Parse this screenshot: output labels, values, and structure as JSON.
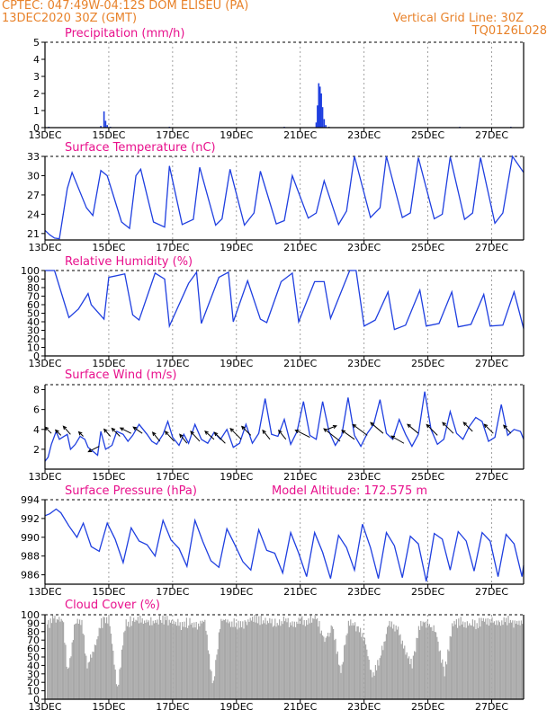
{
  "header": {
    "left_line1": "CPTEC:   047:49W-04:12S   DOM ELISEU (PA)",
    "left_line2": "13DEC2020 30Z (GMT)",
    "right_line1": "Vertical Grid Line: 30Z",
    "right_line2": "TQ0126L028"
  },
  "colors": {
    "header": "#e8822a",
    "title": "#e8108c",
    "series": "#1f3fe0",
    "cloud": "#a8a8a8",
    "axis": "#000000",
    "grid": "#8a8a8a"
  },
  "chart_data": [
    {
      "id": "precip",
      "type": "bar",
      "title": "Precipitation (mm/h)",
      "ylim": [
        0,
        5
      ],
      "yticks": [
        0,
        1,
        2,
        3,
        4,
        5
      ],
      "xlim": [
        0,
        15
      ],
      "xticks": [
        0,
        2,
        4,
        6,
        8,
        10,
        12,
        14
      ],
      "xticklabels": [
        "13DEC",
        "15DEC",
        "17DEC",
        "19DEC",
        "21DEC",
        "23DEC",
        "25DEC",
        "27DEC"
      ],
      "bars": [
        [
          0.12,
          0.05
        ],
        [
          1.75,
          0.1
        ],
        [
          1.85,
          0.95
        ],
        [
          1.9,
          0.4
        ],
        [
          1.95,
          0.15
        ],
        [
          2.05,
          0.05
        ],
        [
          3.9,
          0.05
        ],
        [
          7.5,
          0.05
        ],
        [
          8.5,
          0.3
        ],
        [
          8.54,
          1.3
        ],
        [
          8.58,
          2.6
        ],
        [
          8.62,
          2.4
        ],
        [
          8.66,
          2.0
        ],
        [
          8.7,
          1.2
        ],
        [
          8.75,
          0.5
        ],
        [
          8.8,
          0.15
        ],
        [
          8.9,
          0.05
        ],
        [
          13.0,
          0.05
        ],
        [
          14.6,
          0.05
        ]
      ]
    },
    {
      "id": "temp",
      "type": "line",
      "title": "Surface Temperature (nC)",
      "ylim": [
        20,
        33
      ],
      "yticks": [
        21,
        24,
        27,
        30,
        33
      ],
      "xlim": [
        0,
        15
      ],
      "xticks": [
        0,
        2,
        4,
        6,
        8,
        10,
        12,
        14
      ],
      "xticklabels": [
        "13DEC",
        "15DEC",
        "17DEC",
        "19DEC",
        "21DEC",
        "23DEC",
        "25DEC",
        "27DEC"
      ],
      "x": [
        0,
        0.15,
        0.3,
        0.45,
        0.7,
        0.85,
        1.3,
        1.5,
        1.75,
        1.95,
        2.4,
        2.65,
        2.85,
        3.0,
        3.4,
        3.75,
        3.9,
        4.3,
        4.65,
        4.85,
        5.35,
        5.55,
        5.8,
        6.25,
        6.55,
        6.75,
        7.25,
        7.5,
        7.75,
        8.25,
        8.5,
        8.75,
        9.2,
        9.45,
        9.7,
        10.2,
        10.5,
        10.7,
        11.2,
        11.45,
        11.7,
        12.2,
        12.45,
        12.7,
        13.15,
        13.4,
        13.65,
        14.1,
        14.35,
        14.65,
        15
      ],
      "values": [
        21.5,
        20.8,
        20.3,
        20.2,
        28.0,
        30.5,
        25.0,
        23.8,
        30.8,
        30.0,
        22.8,
        21.8,
        30.0,
        31.0,
        22.8,
        22.0,
        31.5,
        22.4,
        23.2,
        31.3,
        22.3,
        23.3,
        31.0,
        22.3,
        24.2,
        30.7,
        22.5,
        23.0,
        30.0,
        23.4,
        24.2,
        29.2,
        22.4,
        24.5,
        33.0,
        23.5,
        25.0,
        33.0,
        23.5,
        24.2,
        32.8,
        23.3,
        24.0,
        32.9,
        23.2,
        24.2,
        32.8,
        22.6,
        24.2,
        33.0,
        30.5
      ]
    },
    {
      "id": "rh",
      "type": "line",
      "title": "Relative Humidity (%)",
      "ylim": [
        0,
        100
      ],
      "yticks": [
        0,
        10,
        20,
        30,
        40,
        50,
        60,
        70,
        80,
        90,
        100
      ],
      "xlim": [
        0,
        15
      ],
      "xticks": [
        0,
        2,
        4,
        6,
        8,
        10,
        12,
        14
      ],
      "xticklabels": [
        "13DEC",
        "15DEC",
        "17DEC",
        "19DEC",
        "21DEC",
        "23DEC",
        "25DEC",
        "27DEC"
      ],
      "x": [
        0,
        0.3,
        0.75,
        1.05,
        1.35,
        1.45,
        1.85,
        2.0,
        2.5,
        2.75,
        2.95,
        3.45,
        3.75,
        3.9,
        4.5,
        4.75,
        4.9,
        5.45,
        5.75,
        5.9,
        6.35,
        6.75,
        6.95,
        7.4,
        7.75,
        7.95,
        8.45,
        8.75,
        8.95,
        9.55,
        9.75,
        10.0,
        10.35,
        10.75,
        10.95,
        11.3,
        11.75,
        11.95,
        12.35,
        12.75,
        12.95,
        13.35,
        13.75,
        13.95,
        14.35,
        14.7,
        15
      ],
      "values": [
        100,
        100,
        45,
        55,
        73,
        60,
        43,
        92,
        96,
        48,
        42,
        97,
        90,
        35,
        85,
        98,
        38,
        92,
        98,
        40,
        88,
        43,
        39,
        87,
        97,
        40,
        87,
        87,
        44,
        100,
        100,
        35,
        42,
        75,
        31,
        36,
        77,
        35,
        38,
        75,
        34,
        37,
        72,
        35,
        36,
        75,
        32
      ]
    },
    {
      "id": "wind",
      "type": "line",
      "title": "Surface Wind (m/s)",
      "ylim": [
        0,
        8.5
      ],
      "yticks": [
        2,
        4,
        6,
        8
      ],
      "xlim": [
        0,
        15
      ],
      "xticks": [
        0,
        2,
        4,
        6,
        8,
        10,
        12,
        14
      ],
      "xticklabels": [
        "13DEC",
        "15DEC",
        "17DEC",
        "19DEC",
        "21DEC",
        "23DEC",
        "25DEC",
        "27DEC"
      ],
      "x": [
        0,
        0.1,
        0.2,
        0.35,
        0.45,
        0.55,
        0.7,
        0.8,
        0.95,
        1.1,
        1.25,
        1.35,
        1.5,
        1.65,
        1.75,
        1.9,
        2.1,
        2.25,
        2.45,
        2.6,
        2.75,
        2.95,
        3.2,
        3.35,
        3.5,
        3.7,
        3.85,
        4.0,
        4.2,
        4.35,
        4.5,
        4.7,
        4.9,
        5.1,
        5.3,
        5.5,
        5.7,
        5.9,
        6.1,
        6.3,
        6.5,
        6.7,
        6.9,
        7.1,
        7.3,
        7.5,
        7.7,
        7.9,
        8.1,
        8.3,
        8.5,
        8.7,
        8.9,
        9.1,
        9.3,
        9.5,
        9.7,
        9.9,
        10.1,
        10.3,
        10.5,
        10.7,
        10.9,
        11.1,
        11.3,
        11.5,
        11.7,
        11.9,
        12.1,
        12.3,
        12.5,
        12.7,
        12.9,
        13.1,
        13.3,
        13.5,
        13.7,
        13.9,
        14.1,
        14.3,
        14.5,
        14.7,
        14.9,
        15
      ],
      "values": [
        0.8,
        1.2,
        2.5,
        3.8,
        3.0,
        3.2,
        3.5,
        2.0,
        2.5,
        3.3,
        3.0,
        2.2,
        1.8,
        1.4,
        3.8,
        2.0,
        2.4,
        3.8,
        3.5,
        2.8,
        3.4,
        4.5,
        3.5,
        2.8,
        2.5,
        3.5,
        4.8,
        3.2,
        2.4,
        3.5,
        2.6,
        4.5,
        3.0,
        2.6,
        3.7,
        3.0,
        4.0,
        2.2,
        2.6,
        4.5,
        2.6,
        3.6,
        7.1,
        3.5,
        3.3,
        5.0,
        2.5,
        3.8,
        6.8,
        3.4,
        3.0,
        6.8,
        3.8,
        2.4,
        3.4,
        7.2,
        3.4,
        2.3,
        3.6,
        4.5,
        7.0,
        3.6,
        3.0,
        5.0,
        3.5,
        2.3,
        3.5,
        7.8,
        4.0,
        2.5,
        3.0,
        5.8,
        3.6,
        3.0,
        4.3,
        5.2,
        4.8,
        2.8,
        3.2,
        6.5,
        3.4,
        4.0,
        3.8,
        3.0
      ],
      "arrows": [
        [
          0.2,
          3.6,
          -7,
          -7
        ],
        [
          0.5,
          3.4,
          -6,
          -6
        ],
        [
          0.8,
          3.5,
          -8,
          -9
        ],
        [
          1.2,
          3.3,
          -5,
          -5
        ],
        [
          1.7,
          2.3,
          -12,
          6
        ],
        [
          2.05,
          3.3,
          -7,
          -8
        ],
        [
          2.35,
          3.3,
          -9,
          -9
        ],
        [
          2.7,
          3.6,
          -12,
          -6
        ],
        [
          3.05,
          3.6,
          -10,
          -7
        ],
        [
          3.6,
          2.8,
          -8,
          -10
        ],
        [
          4.05,
          2.8,
          -10,
          -11
        ],
        [
          4.45,
          2.6,
          -8,
          -10
        ],
        [
          4.85,
          2.8,
          -10,
          -11
        ],
        [
          5.3,
          3.0,
          -10,
          -9
        ],
        [
          5.65,
          2.6,
          -12,
          -12
        ],
        [
          6.15,
          3.0,
          -12,
          -12
        ],
        [
          6.45,
          3.4,
          -10,
          -10
        ],
        [
          7.05,
          3.0,
          -8,
          -10
        ],
        [
          7.55,
          3.0,
          -8,
          -10
        ],
        [
          8.3,
          3.2,
          -16,
          -8
        ],
        [
          8.85,
          4.0,
          10,
          -4
        ],
        [
          9.25,
          2.8,
          -18,
          -14
        ],
        [
          9.7,
          3.0,
          -14,
          -10
        ],
        [
          10.1,
          3.4,
          -16,
          -12
        ],
        [
          10.6,
          3.6,
          -14,
          -12
        ],
        [
          11.25,
          2.6,
          -14,
          -8
        ],
        [
          11.7,
          3.6,
          -12,
          -10
        ],
        [
          12.3,
          3.4,
          -12,
          -12
        ],
        [
          12.8,
          3.6,
          -12,
          -12
        ],
        [
          13.4,
          3.8,
          -10,
          -10
        ],
        [
          14.05,
          3.6,
          -10,
          -10
        ],
        [
          14.6,
          3.6,
          -8,
          -9
        ]
      ]
    },
    {
      "id": "pressure",
      "type": "line",
      "title": "Surface Pressure (hPa)",
      "annotation": "Model Altitude: 172.575  m",
      "ylim": [
        985,
        994
      ],
      "yticks": [
        986,
        988,
        990,
        992,
        994
      ],
      "xlim": [
        0,
        15
      ],
      "xticks": [
        0,
        2,
        4,
        6,
        8,
        10,
        12,
        14
      ],
      "xticklabels": [
        "13DEC",
        "15DEC",
        "17DEC",
        "19DEC",
        "21DEC",
        "23DEC",
        "25DEC",
        "27DEC"
      ],
      "x": [
        0,
        0.15,
        0.35,
        0.5,
        0.75,
        1.0,
        1.2,
        1.45,
        1.7,
        1.95,
        2.2,
        2.45,
        2.7,
        2.95,
        3.2,
        3.45,
        3.7,
        3.95,
        4.2,
        4.45,
        4.7,
        4.95,
        5.2,
        5.45,
        5.7,
        5.95,
        6.2,
        6.45,
        6.7,
        6.95,
        7.2,
        7.45,
        7.7,
        7.95,
        8.2,
        8.45,
        8.7,
        8.95,
        9.2,
        9.45,
        9.7,
        9.95,
        10.2,
        10.45,
        10.7,
        10.95,
        11.2,
        11.45,
        11.7,
        11.95,
        12.2,
        12.45,
        12.7,
        12.95,
        13.2,
        13.45,
        13.7,
        13.95,
        14.2,
        14.45,
        14.7,
        14.95,
        15
      ],
      "values": [
        992.3,
        992.5,
        993.0,
        992.6,
        991.2,
        990.0,
        991.5,
        989.0,
        988.5,
        991.5,
        989.8,
        987.3,
        991.0,
        989.6,
        989.2,
        988.0,
        991.8,
        989.7,
        988.8,
        986.9,
        991.8,
        989.5,
        987.5,
        986.8,
        990.9,
        989.2,
        987.4,
        986.5,
        990.8,
        988.6,
        988.3,
        986.2,
        990.5,
        988.3,
        985.8,
        990.5,
        988.4,
        985.6,
        990.2,
        988.9,
        986.5,
        991.4,
        988.9,
        985.6,
        990.5,
        989.1,
        985.7,
        990.1,
        989.3,
        985.3,
        990.4,
        989.8,
        986.5,
        990.6,
        989.6,
        986.4,
        990.5,
        989.6,
        985.8,
        990.3,
        989.3,
        985.8,
        987.0
      ]
    },
    {
      "id": "cloud",
      "type": "area",
      "title": "Cloud Cover (%)",
      "ylim": [
        0,
        100
      ],
      "yticks": [
        0,
        10,
        20,
        30,
        40,
        50,
        60,
        70,
        80,
        90,
        100
      ],
      "xlim": [
        0,
        15
      ],
      "xticks": [
        0,
        2,
        4,
        6,
        8,
        10,
        12,
        14
      ],
      "xticklabels": [
        "13DEC",
        "15DEC",
        "17DEC",
        "19DEC",
        "21DEC",
        "23DEC",
        "25DEC",
        "27DEC"
      ],
      "x": [
        0,
        0.25,
        0.55,
        0.7,
        0.95,
        1.15,
        1.3,
        1.5,
        1.75,
        2.0,
        2.25,
        2.5,
        2.75,
        3.0,
        3.25,
        3.5,
        3.75,
        4.0,
        4.25,
        4.5,
        4.75,
        5.0,
        5.25,
        5.5,
        5.75,
        6.0,
        6.25,
        6.5,
        6.75,
        7.0,
        7.25,
        7.5,
        7.75,
        8.0,
        8.25,
        8.5,
        8.75,
        9.0,
        9.25,
        9.5,
        9.75,
        10.0,
        10.25,
        10.5,
        10.75,
        11.0,
        11.25,
        11.5,
        11.75,
        12.0,
        12.25,
        12.5,
        12.75,
        13.0,
        13.25,
        13.5,
        13.75,
        14.0,
        14.25,
        14.5,
        14.75,
        15
      ],
      "values": [
        85,
        96,
        93,
        30,
        95,
        88,
        40,
        55,
        90,
        95,
        10,
        88,
        94,
        93,
        92,
        93,
        94,
        90,
        88,
        91,
        86,
        93,
        15,
        95,
        92,
        88,
        90,
        94,
        93,
        92,
        90,
        93,
        88,
        92,
        93,
        96,
        70,
        88,
        30,
        92,
        85,
        72,
        25,
        50,
        90,
        85,
        60,
        40,
        92,
        90,
        78,
        30,
        88,
        92,
        90,
        88,
        94,
        92,
        91,
        93,
        90,
        92
      ]
    }
  ]
}
